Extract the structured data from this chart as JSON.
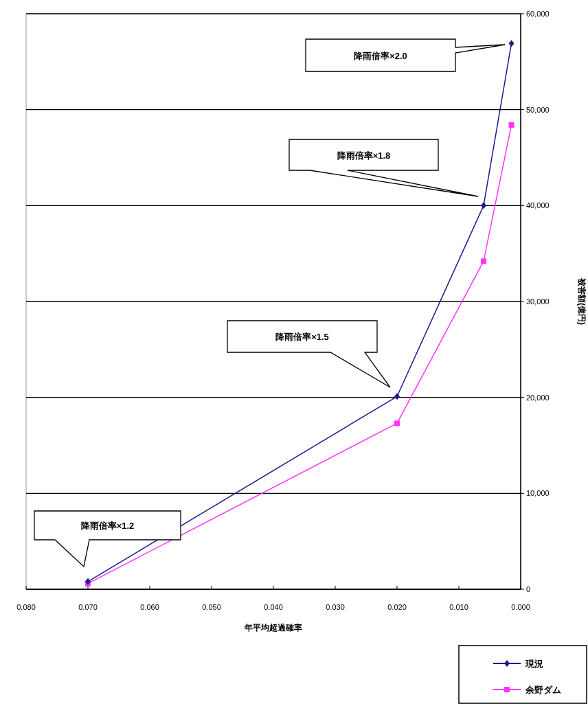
{
  "chart_data": {
    "type": "line",
    "xlabel": "年平均超過確率",
    "ylabel": "被害額(億円)",
    "xlim": [
      0.08,
      0
    ],
    "xticks": [
      {
        "value": 0.08,
        "label": "0.080"
      },
      {
        "value": 0.07,
        "label": "0.070"
      },
      {
        "value": 0.06,
        "label": "0.060"
      },
      {
        "value": 0.05,
        "label": "0.050"
      },
      {
        "value": 0.04,
        "label": "0.040"
      },
      {
        "value": 0.03,
        "label": "0.030"
      },
      {
        "value": 0.02,
        "label": "0.020"
      },
      {
        "value": 0.01,
        "label": "0.010"
      },
      {
        "value": 0,
        "label": "0.000"
      }
    ],
    "ylim": [
      0,
      60000
    ],
    "yticks": [
      {
        "value": 0,
        "label": "0"
      },
      {
        "value": 10000,
        "label": "10,000"
      },
      {
        "value": 20000,
        "label": "20,000"
      },
      {
        "value": 30000,
        "label": "30,000"
      },
      {
        "value": 40000,
        "label": "40,000"
      },
      {
        "value": 50000,
        "label": "50,000"
      },
      {
        "value": 60000,
        "label": "60,000"
      }
    ],
    "grid": "y",
    "legend": "bottom right",
    "series": [
      {
        "name": "現況",
        "color": "#1a1a8c",
        "marker": "diamond",
        "x": [
          0.07,
          0.02,
          0.006,
          0.0015
        ],
        "values": [
          800,
          20100,
          40000,
          56900
        ]
      },
      {
        "name": "余野ダム",
        "color": "#ff33ff",
        "marker": "square",
        "x": [
          0.07,
          0.02,
          0.006,
          0.0015
        ],
        "values": [
          600,
          17300,
          34200,
          48400
        ]
      }
    ],
    "annotations": [
      "降雨倍率×2.0",
      "降雨倍率×1.8",
      "降雨倍率×1.5",
      "降雨倍率×1.2"
    ]
  }
}
